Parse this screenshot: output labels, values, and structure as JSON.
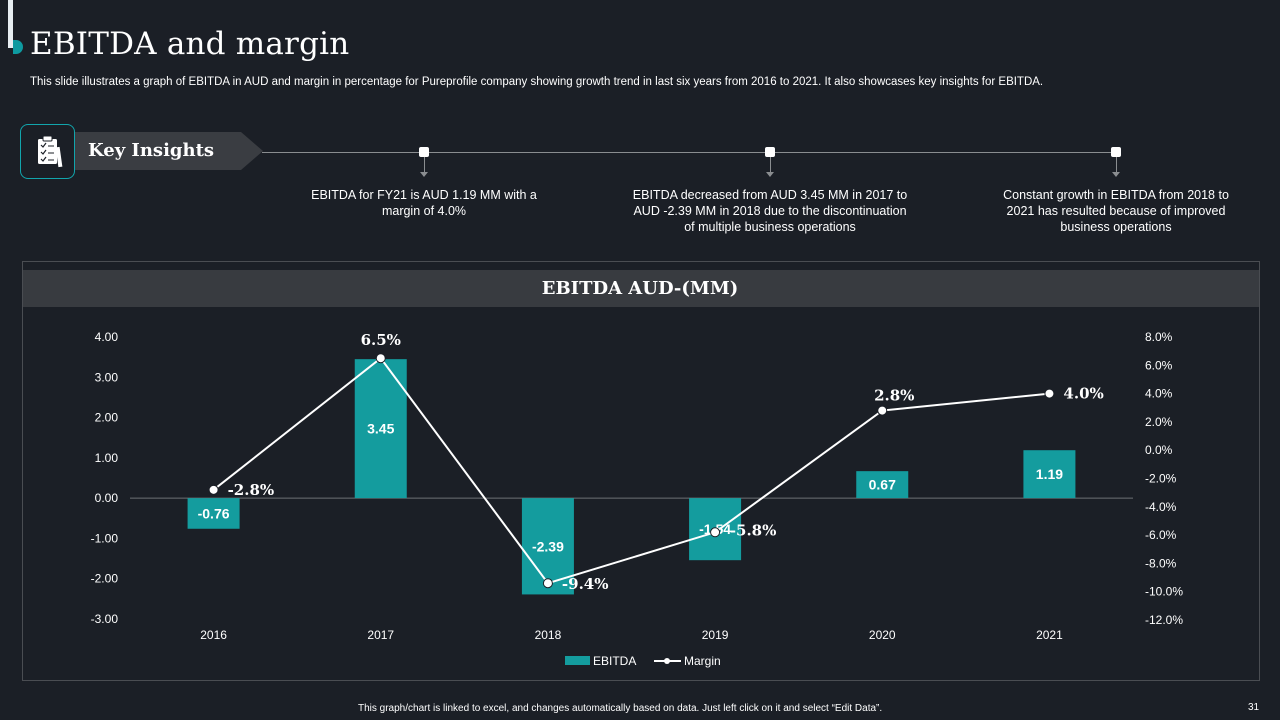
{
  "header": {
    "title": "EBITDA and margin",
    "subtitle": "This slide illustrates a graph of EBITDA  in AUD and margin in percentage for Pureprofile company showing growth trend in last six years from 2016 to  2021. It also showcases key insights for EBITDA."
  },
  "key_insights": {
    "label": "Key Insights",
    "items": [
      "EBITDA  for FY21 is AUD 1.19 MM with a margin of 4.0%",
      "EBITDA decreased from AUD 3.45 MM in 2017 to AUD -2.39 MM in 2018 due to the discontinuation of multiple business operations",
      "Constant growth in EBITDA from 2018 to 2021 has resulted because of improved  business operations"
    ]
  },
  "panel": {
    "title": "EBITDA AUD-(MM)"
  },
  "colors": {
    "bar": "#149c9e",
    "line": "#ffffff",
    "background": "#1b1f26",
    "accent": "#12a5ac"
  },
  "chart_data": {
    "type": "bar",
    "title": "EBITDA AUD-(MM)",
    "categories": [
      "2016",
      "2017",
      "2018",
      "2019",
      "2020",
      "2021"
    ],
    "series": [
      {
        "name": "EBITDA",
        "type": "bar",
        "axis": "left",
        "values": [
          -0.76,
          3.45,
          -2.39,
          -1.54,
          0.67,
          1.19
        ],
        "labels": [
          "-0.76",
          "3.45",
          "-2.39",
          "-1.54",
          "0.67",
          "1.19"
        ]
      },
      {
        "name": "Margin",
        "type": "line",
        "axis": "right",
        "values": [
          -2.8,
          6.5,
          -9.4,
          -5.8,
          2.8,
          4.0
        ],
        "labels": [
          "-2.8%",
          "6.5%",
          "-9.4%",
          "-5.8%",
          "2.8%",
          "4.0%"
        ]
      }
    ],
    "y_left": {
      "ylim": [
        -3,
        4
      ],
      "ticks": [
        "4.00",
        "3.00",
        "2.00",
        "1.00",
        "0.00",
        "-1.00",
        "-2.00",
        "-3.00"
      ],
      "tick_values": [
        4,
        3,
        2,
        1,
        0,
        -1,
        -2,
        -3
      ]
    },
    "y_right": {
      "ylim": [
        -12,
        8
      ],
      "ticks": [
        "8.0%",
        "6.0%",
        "4.0%",
        "2.0%",
        "0.0%",
        "-2.0%",
        "-4.0%",
        "-6.0%",
        "-8.0%",
        "-10.0%",
        "-12.0%"
      ],
      "tick_values": [
        8,
        6,
        4,
        2,
        0,
        -2,
        -4,
        -6,
        -8,
        -10,
        -12
      ]
    },
    "legend": [
      "EBITDA",
      "Margin"
    ],
    "legend_position": "bottom",
    "grid": false
  },
  "footer": {
    "note": "This graph/chart is linked to excel, and changes automatically based on data. Just left click on it and select “Edit Data”.",
    "page_number": "31"
  }
}
